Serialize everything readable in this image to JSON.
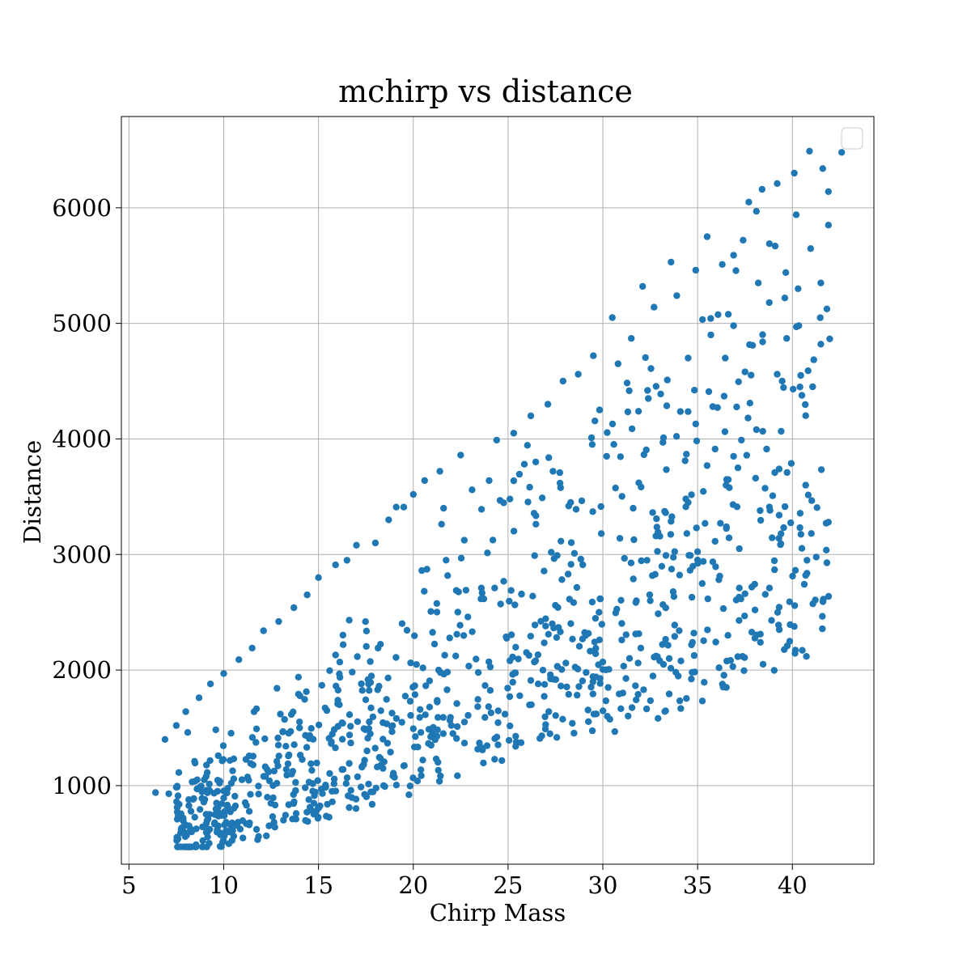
{
  "chart_data": {
    "type": "scatter",
    "title": "mchirp vs distance",
    "xlabel": "Chirp Mass",
    "ylabel": "Distance",
    "xlim": [
      4.6,
      44.3
    ],
    "ylim": [
      320,
      6790
    ],
    "xticks": [
      5,
      10,
      15,
      20,
      25,
      30,
      35,
      40
    ],
    "yticks": [
      1000,
      2000,
      3000,
      4000,
      5000,
      6000
    ],
    "grid": true,
    "legend": {
      "placement": "top-right",
      "entries": []
    },
    "colors": {
      "marker": "#1f77b4",
      "grid": "#b0b0b0"
    },
    "seed": 12345,
    "points": [
      [
        6.4,
        940
      ],
      [
        7.1,
        930
      ],
      [
        7.8,
        610
      ],
      [
        6.9,
        1400
      ],
      [
        7.5,
        1520
      ],
      [
        8.1,
        1460
      ],
      [
        9.7,
        810
      ],
      [
        11.2,
        830
      ],
      [
        10.4,
        1020
      ],
      [
        8.6,
        1050
      ],
      [
        9.1,
        960
      ],
      [
        9.0,
        880
      ],
      [
        13.3,
        1140
      ],
      [
        14.5,
        1030
      ],
      [
        12.2,
        1080
      ],
      [
        16.3,
        1140
      ],
      [
        14.6,
        1190
      ],
      [
        18.8,
        1290
      ],
      [
        17.6,
        1410
      ],
      [
        20.4,
        1460
      ],
      [
        21.3,
        1590
      ],
      [
        22.7,
        1550
      ],
      [
        24.1,
        1630
      ],
      [
        22.3,
        1710
      ],
      [
        25.1,
        2080
      ],
      [
        26.2,
        1910
      ],
      [
        28.2,
        1790
      ],
      [
        27.4,
        1920
      ],
      [
        30.0,
        2070
      ],
      [
        31.0,
        2260
      ],
      [
        32.0,
        2190
      ],
      [
        33.0,
        2080
      ],
      [
        34.8,
        2320
      ],
      [
        36.6,
        2300
      ],
      [
        38.9,
        2430
      ],
      [
        40.7,
        2820
      ],
      [
        37.2,
        2710
      ],
      [
        34.7,
        2630
      ],
      [
        32.5,
        2600
      ],
      [
        29.8,
        2500
      ],
      [
        27.5,
        2560
      ],
      [
        26.3,
        2640
      ],
      [
        26.4,
        2990
      ],
      [
        28.5,
        3010
      ],
      [
        30.9,
        3140
      ],
      [
        32.8,
        3160
      ],
      [
        35.3,
        2940
      ],
      [
        37.2,
        3050
      ],
      [
        39.4,
        3180
      ],
      [
        39.3,
        3340
      ],
      [
        38.3,
        3380
      ],
      [
        36.5,
        3600
      ],
      [
        34.5,
        3450
      ],
      [
        31.6,
        3400
      ],
      [
        28.2,
        3420
      ],
      [
        26.8,
        3490
      ],
      [
        25.1,
        3480
      ],
      [
        24.0,
        3640
      ],
      [
        23.1,
        3560
      ],
      [
        21.6,
        3400
      ],
      [
        20.0,
        3520
      ],
      [
        19.5,
        3410
      ],
      [
        18.7,
        3300
      ],
      [
        18.0,
        3100
      ],
      [
        17.0,
        3080
      ],
      [
        16.5,
        2950
      ],
      [
        15.9,
        2910
      ],
      [
        15.0,
        2800
      ],
      [
        14.4,
        2650
      ],
      [
        13.7,
        2540
      ],
      [
        12.9,
        2420
      ],
      [
        12.1,
        2340
      ],
      [
        11.5,
        2190
      ],
      [
        10.8,
        2090
      ],
      [
        10.0,
        1970
      ],
      [
        9.3,
        1880
      ],
      [
        8.7,
        1760
      ],
      [
        8.0,
        1640
      ],
      [
        30.5,
        5050
      ],
      [
        32.1,
        5320
      ],
      [
        33.6,
        5530
      ],
      [
        35.5,
        5750
      ],
      [
        36.3,
        5510
      ],
      [
        37.4,
        5720
      ],
      [
        37.7,
        6050
      ],
      [
        38.4,
        6160
      ],
      [
        39.2,
        6210
      ],
      [
        40.1,
        6300
      ],
      [
        40.9,
        6490
      ],
      [
        41.6,
        6340
      ],
      [
        42.6,
        6480
      ],
      [
        41.9,
        6140
      ],
      [
        41.9,
        5850
      ],
      [
        40.2,
        5940
      ],
      [
        38.1,
        5970
      ],
      [
        36.9,
        5590
      ],
      [
        34.9,
        5460
      ],
      [
        33.9,
        5240
      ],
      [
        32.7,
        5140
      ],
      [
        31.5,
        4870
      ],
      [
        30.8,
        4650
      ],
      [
        29.5,
        4720
      ],
      [
        28.7,
        4560
      ],
      [
        27.9,
        4500
      ],
      [
        27.1,
        4300
      ],
      [
        26.2,
        4200
      ],
      [
        25.3,
        4050
      ],
      [
        24.4,
        3990
      ],
      [
        22.5,
        3860
      ],
      [
        21.4,
        3720
      ],
      [
        20.6,
        3640
      ],
      [
        19.1,
        3410
      ],
      [
        35.7,
        4900
      ],
      [
        37.9,
        4810
      ],
      [
        39.7,
        4870
      ],
      [
        40.4,
        4450
      ],
      [
        41.5,
        4820
      ],
      [
        40.7,
        3600
      ],
      [
        39.3,
        3740
      ],
      [
        38.1,
        4080
      ],
      [
        36.9,
        3850
      ],
      [
        34.9,
        4130
      ],
      [
        33.2,
        4010
      ],
      [
        31.9,
        3620
      ],
      [
        30.2,
        3850
      ],
      [
        29.4,
        4010
      ],
      [
        32.4,
        4350
      ],
      [
        33.4,
        4510
      ],
      [
        34.5,
        4700
      ],
      [
        35.8,
        4280
      ],
      [
        36.9,
        4980
      ],
      [
        38.2,
        5350
      ],
      [
        39.6,
        5220
      ],
      [
        40.3,
        5300
      ],
      [
        41.5,
        5350
      ],
      [
        39.2,
        4560
      ],
      [
        37.5,
        4580
      ],
      [
        36.4,
        4370
      ]
    ]
  }
}
